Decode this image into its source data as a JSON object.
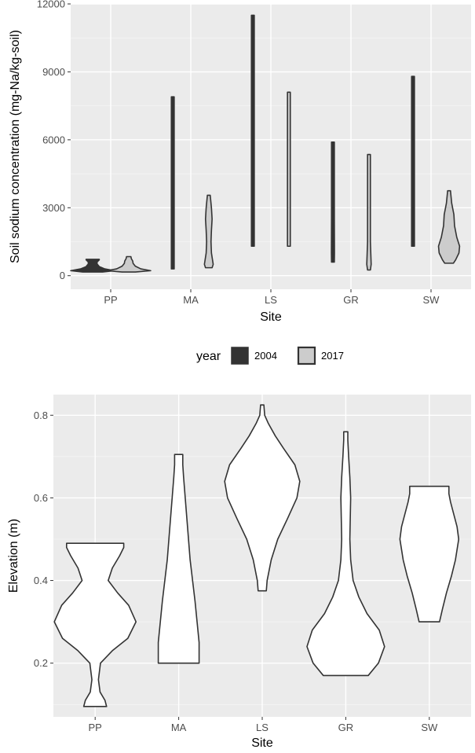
{
  "chart_data": [
    {
      "type": "violin",
      "categories": [
        "PP",
        "MA",
        "LS",
        "GR",
        "SW"
      ],
      "xlabel": "Site",
      "ylabel": "Soil sodium concentration (mg-Na/kg-soil)",
      "ylim": [
        -600,
        12000
      ],
      "yticks": [
        0,
        3000,
        6000,
        9000,
        12000
      ],
      "grid": true,
      "series": [
        {
          "name": "2004",
          "color": "#333333",
          "violins": [
            {
              "category": "PP",
              "min": 160,
              "max": 720,
              "profile": [
                [
                  160,
                  0.45
                ],
                [
                  220,
                  1.0
                ],
                [
                  300,
                  0.55
                ],
                [
                  400,
                  0.3
                ],
                [
                  520,
                  0.2
                ],
                [
                  600,
                  0.2
                ],
                [
                  650,
                  0.25
                ],
                [
                  700,
                  0.3
                ],
                [
                  720,
                  0.3
                ]
              ]
            },
            {
              "category": "MA",
              "min": 300,
              "max": 7900,
              "profile": [
                [
                  300,
                  0.05
                ],
                [
                  1500,
                  0.05
                ],
                [
                  3000,
                  0.05
                ],
                [
                  5000,
                  0.04
                ],
                [
                  7000,
                  0.04
                ],
                [
                  7900,
                  0.03
                ]
              ]
            },
            {
              "category": "LS",
              "min": 1300,
              "max": 11500,
              "profile": [
                [
                  1300,
                  0.05
                ],
                [
                  3000,
                  0.05
                ],
                [
                  6000,
                  0.05
                ],
                [
                  9000,
                  0.04
                ],
                [
                  11500,
                  0.03
                ]
              ]
            },
            {
              "category": "GR",
              "min": 600,
              "max": 5900,
              "profile": [
                [
                  600,
                  0.06
                ],
                [
                  1000,
                  0.07
                ],
                [
                  2500,
                  0.06
                ],
                [
                  4000,
                  0.05
                ],
                [
                  5900,
                  0.03
                ]
              ]
            },
            {
              "category": "SW",
              "min": 1300,
              "max": 8800,
              "profile": [
                [
                  1300,
                  0.05
                ],
                [
                  3000,
                  0.06
                ],
                [
                  5000,
                  0.05
                ],
                [
                  7000,
                  0.04
                ],
                [
                  8800,
                  0.03
                ]
              ]
            }
          ]
        },
        {
          "name": "2017",
          "color": "#cccccc",
          "violins": [
            {
              "category": "PP",
              "min": 160,
              "max": 840,
              "profile": [
                [
                  160,
                  0.3
                ],
                [
                  220,
                  1.0
                ],
                [
                  300,
                  0.55
                ],
                [
                  420,
                  0.3
                ],
                [
                  540,
                  0.2
                ],
                [
                  650,
                  0.18
                ],
                [
                  750,
                  0.12
                ],
                [
                  840,
                  0.1
                ]
              ]
            },
            {
              "category": "MA",
              "min": 350,
              "max": 3550,
              "profile": [
                [
                  350,
                  0.15
                ],
                [
                  500,
                  0.2
                ],
                [
                  1000,
                  0.12
                ],
                [
                  1500,
                  0.1
                ],
                [
                  2000,
                  0.12
                ],
                [
                  2500,
                  0.15
                ],
                [
                  3000,
                  0.12
                ],
                [
                  3550,
                  0.05
                ]
              ]
            },
            {
              "category": "LS",
              "min": 1300,
              "max": 8100,
              "profile": [
                [
                  1300,
                  0.05
                ],
                [
                  3000,
                  0.06
                ],
                [
                  5500,
                  0.06
                ],
                [
                  7000,
                  0.05
                ],
                [
                  8100,
                  0.04
                ]
              ]
            },
            {
              "category": "GR",
              "min": 250,
              "max": 5350,
              "profile": [
                [
                  250,
                  0.06
                ],
                [
                  500,
                  0.1
                ],
                [
                  1500,
                  0.06
                ],
                [
                  3000,
                  0.05
                ],
                [
                  4500,
                  0.04
                ],
                [
                  5350,
                  0.03
                ]
              ]
            },
            {
              "category": "SW",
              "min": 550,
              "max": 3750,
              "profile": [
                [
                  550,
                  0.2
                ],
                [
                  700,
                  0.3
                ],
                [
                  1000,
                  0.45
                ],
                [
                  1300,
                  0.48
                ],
                [
                  1700,
                  0.35
                ],
                [
                  2200,
                  0.25
                ],
                [
                  2700,
                  0.22
                ],
                [
                  3200,
                  0.12
                ],
                [
                  3750,
                  0.06
                ]
              ]
            }
          ]
        }
      ],
      "legend": {
        "title": "year",
        "position": "bottom",
        "entries": [
          "2004",
          "2017"
        ]
      }
    },
    {
      "type": "violin",
      "categories": [
        "PP",
        "MA",
        "LS",
        "GR",
        "SW"
      ],
      "xlabel": "Site",
      "ylabel": "Elevation (m)",
      "ylim": [
        0.07,
        0.85
      ],
      "yticks": [
        0.2,
        0.4,
        0.6,
        0.8
      ],
      "grid": true,
      "series": [
        {
          "fill": "#ffffff",
          "stroke": "#333333",
          "violins": [
            {
              "category": "PP",
              "min": 0.095,
              "max": 0.49,
              "profile": [
                [
                  0.095,
                  0.28
                ],
                [
                  0.11,
                  0.24
                ],
                [
                  0.13,
                  0.12
                ],
                [
                  0.16,
                  0.08
                ],
                [
                  0.2,
                  0.13
                ],
                [
                  0.23,
                  0.42
                ],
                [
                  0.26,
                  0.8
                ],
                [
                  0.3,
                  1.0
                ],
                [
                  0.34,
                  0.82
                ],
                [
                  0.37,
                  0.55
                ],
                [
                  0.4,
                  0.32
                ],
                [
                  0.43,
                  0.42
                ],
                [
                  0.46,
                  0.6
                ],
                [
                  0.48,
                  0.7
                ],
                [
                  0.49,
                  0.7
                ]
              ]
            },
            {
              "category": "MA",
              "min": 0.2,
              "max": 0.705,
              "profile": [
                [
                  0.2,
                  0.5
                ],
                [
                  0.22,
                  0.5
                ],
                [
                  0.25,
                  0.5
                ],
                [
                  0.3,
                  0.45
                ],
                [
                  0.35,
                  0.4
                ],
                [
                  0.4,
                  0.34
                ],
                [
                  0.45,
                  0.28
                ],
                [
                  0.5,
                  0.24
                ],
                [
                  0.55,
                  0.2
                ],
                [
                  0.6,
                  0.16
                ],
                [
                  0.65,
                  0.12
                ],
                [
                  0.68,
                  0.1
                ],
                [
                  0.705,
                  0.1
                ]
              ]
            },
            {
              "category": "LS",
              "min": 0.375,
              "max": 0.825,
              "profile": [
                [
                  0.375,
                  0.1
                ],
                [
                  0.4,
                  0.12
                ],
                [
                  0.45,
                  0.22
                ],
                [
                  0.5,
                  0.38
                ],
                [
                  0.55,
                  0.62
                ],
                [
                  0.6,
                  0.85
                ],
                [
                  0.64,
                  0.92
                ],
                [
                  0.68,
                  0.8
                ],
                [
                  0.72,
                  0.52
                ],
                [
                  0.75,
                  0.32
                ],
                [
                  0.78,
                  0.15
                ],
                [
                  0.8,
                  0.06
                ],
                [
                  0.825,
                  0.04
                ]
              ]
            },
            {
              "category": "GR",
              "min": 0.17,
              "max": 0.76,
              "profile": [
                [
                  0.17,
                  0.55
                ],
                [
                  0.2,
                  0.8
                ],
                [
                  0.24,
                  0.95
                ],
                [
                  0.28,
                  0.82
                ],
                [
                  0.32,
                  0.52
                ],
                [
                  0.36,
                  0.32
                ],
                [
                  0.4,
                  0.18
                ],
                [
                  0.45,
                  0.12
                ],
                [
                  0.5,
                  0.1
                ],
                [
                  0.55,
                  0.11
                ],
                [
                  0.6,
                  0.12
                ],
                [
                  0.65,
                  0.1
                ],
                [
                  0.7,
                  0.07
                ],
                [
                  0.74,
                  0.05
                ],
                [
                  0.76,
                  0.05
                ]
              ]
            },
            {
              "category": "SW",
              "min": 0.3,
              "max": 0.628,
              "profile": [
                [
                  0.3,
                  0.25
                ],
                [
                  0.33,
                  0.32
                ],
                [
                  0.37,
                  0.42
                ],
                [
                  0.41,
                  0.54
                ],
                [
                  0.45,
                  0.64
                ],
                [
                  0.5,
                  0.72
                ],
                [
                  0.53,
                  0.68
                ],
                [
                  0.56,
                  0.6
                ],
                [
                  0.59,
                  0.52
                ],
                [
                  0.61,
                  0.48
                ],
                [
                  0.628,
                  0.48
                ]
              ]
            }
          ]
        }
      ]
    }
  ]
}
